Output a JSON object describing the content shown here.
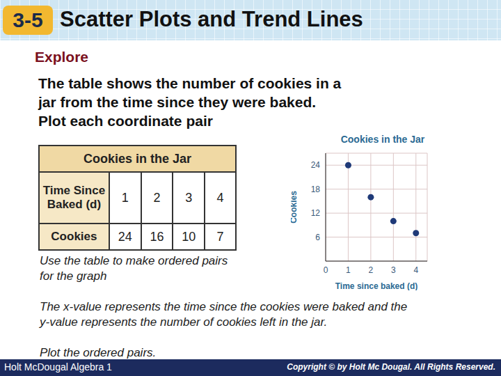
{
  "header": {
    "number": "3-5",
    "title": "Scatter Plots and Trend Lines"
  },
  "explore": {
    "heading": "Explore",
    "lines": [
      "The table shows the number of cookies in a",
      "jar from the time since they were baked.",
      "Plot each coordinate pair"
    ]
  },
  "table": {
    "title": "Cookies in the Jar",
    "rows": [
      [
        "Time Since Baked (d)",
        1,
        2,
        3,
        4
      ],
      [
        "Cookies",
        24,
        16,
        10,
        7
      ]
    ]
  },
  "notes": [
    [
      "Use the table to make ordered pairs",
      "for the graph"
    ],
    [
      "The x-value represents the time since the cookies were baked and the",
      "y-value represents the number of cookies left in the jar."
    ],
    [
      "Plot the ordered pairs."
    ]
  ],
  "footer": {
    "left": "Holt McDougal Algebra 1",
    "right": "Copyright © by Holt Mc Dougal. All Rights Reserved."
  },
  "chart_data": {
    "type": "scatter",
    "title": "Cookies in the Jar",
    "x_label": "Time since baked (d)",
    "y_label": "Cookies",
    "x": [
      1,
      2,
      3,
      4
    ],
    "values": [
      24,
      16,
      10,
      7
    ],
    "color": "#1f3a78",
    "marker": "circle",
    "xlim": [
      0,
      4.5
    ],
    "ylim": [
      0,
      27
    ],
    "xticks": [
      0,
      1,
      2,
      3,
      4
    ],
    "yticks": [
      6,
      12,
      18,
      24
    ],
    "grid": true
  }
}
